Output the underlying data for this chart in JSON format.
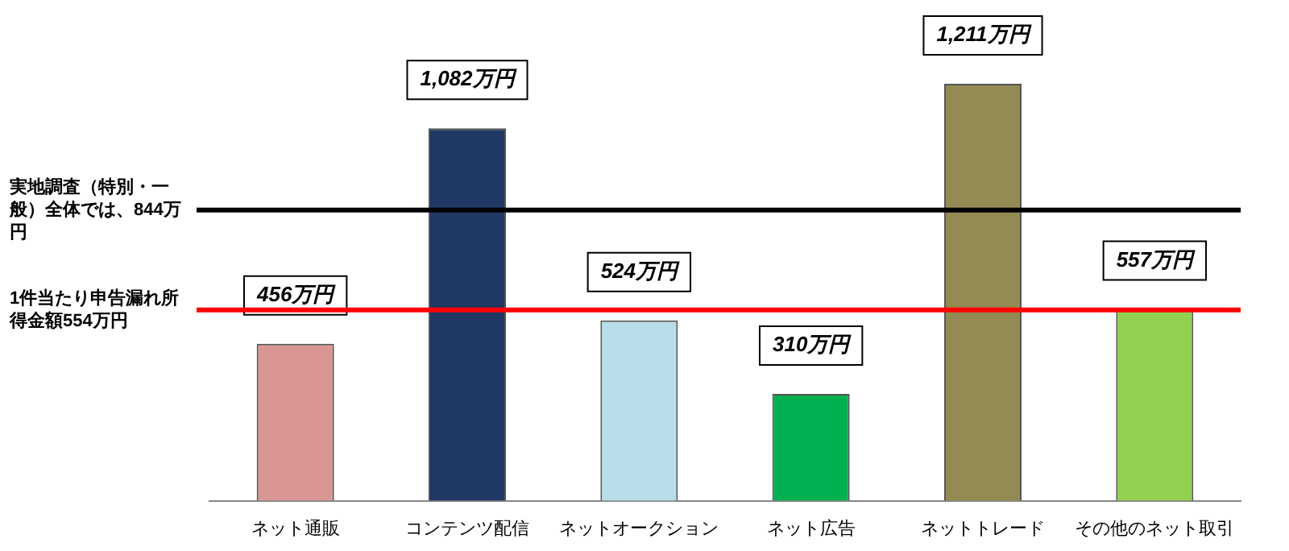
{
  "chart_data": {
    "type": "bar",
    "categories": [
      "ネット通販",
      "コンテンツ配信",
      "ネットオークション",
      "ネット広告",
      "ネットトレード",
      "その他のネット取引"
    ],
    "values": [
      456,
      1082,
      524,
      310,
      1211,
      557
    ],
    "colors": [
      "#d99694",
      "#1f3864",
      "#b7dee8",
      "#00b050",
      "#948a54",
      "#92d050"
    ],
    "value_labels": [
      "456万円",
      "1,082万円",
      "524万円",
      "310万円",
      "1,211万円",
      "557万円"
    ],
    "ref_lines": [
      {
        "axis": "y",
        "value": 844,
        "label": "実地調査（特別・一般）全体では、844万円",
        "color": "#000000"
      },
      {
        "axis": "y",
        "value": 554,
        "label": "1件当たり申告漏れ所得金額554万円",
        "color": "#ff0000"
      }
    ],
    "grid": false,
    "legend": false
  }
}
